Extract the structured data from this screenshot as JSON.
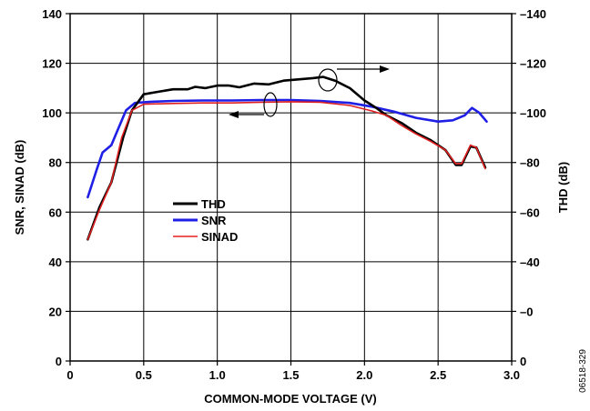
{
  "chart_data": {
    "type": "line",
    "title": "",
    "xlabel": "COMMON-MODE VOLTAGE (V)",
    "ylabel_left": "SNR, SINAD (dB)",
    "ylabel_right": "THD (dB)",
    "xlim": [
      0,
      3.0
    ],
    "ylim_left": [
      0,
      140
    ],
    "ylim_right": [
      0,
      -140
    ],
    "x_ticks": [
      "0",
      "0.5",
      "1.0",
      "1.5",
      "2.0",
      "2.5",
      "3.0"
    ],
    "y_ticks_left": [
      "0",
      "20",
      "40",
      "60",
      "80",
      "100",
      "120",
      "140"
    ],
    "y_ticks_right": [
      "0",
      "–0",
      "–40",
      "–60",
      "–80",
      "–100",
      "–120",
      "–140"
    ],
    "grid": true,
    "legend_position": "middle-left",
    "figure_code": "06518-329",
    "series": [
      {
        "name": "THD",
        "color": "#000000",
        "axis": "right",
        "points": [
          [
            0.12,
            -49
          ],
          [
            0.2,
            -62
          ],
          [
            0.28,
            -72
          ],
          [
            0.36,
            -90
          ],
          [
            0.42,
            -101
          ],
          [
            0.5,
            -107.5
          ],
          [
            0.6,
            -108.5
          ],
          [
            0.7,
            -109.5
          ],
          [
            0.8,
            -109.5
          ],
          [
            0.85,
            -110.5
          ],
          [
            0.92,
            -110
          ],
          [
            1.0,
            -111
          ],
          [
            1.08,
            -111
          ],
          [
            1.15,
            -110.3
          ],
          [
            1.25,
            -111.8
          ],
          [
            1.35,
            -111.5
          ],
          [
            1.45,
            -113
          ],
          [
            1.55,
            -113.5
          ],
          [
            1.65,
            -114
          ],
          [
            1.72,
            -114.5
          ],
          [
            1.8,
            -113
          ],
          [
            1.9,
            -110
          ],
          [
            2.0,
            -105
          ],
          [
            2.08,
            -102
          ],
          [
            2.15,
            -99
          ],
          [
            2.25,
            -96
          ],
          [
            2.35,
            -92
          ],
          [
            2.45,
            -89
          ],
          [
            2.55,
            -85
          ],
          [
            2.62,
            -79
          ],
          [
            2.66,
            -79
          ],
          [
            2.72,
            -86.5
          ],
          [
            2.76,
            -86
          ],
          [
            2.82,
            -78
          ]
        ]
      },
      {
        "name": "SNR",
        "color": "#1f1fe6",
        "axis": "left",
        "points": [
          [
            0.12,
            66
          ],
          [
            0.18,
            77
          ],
          [
            0.22,
            84
          ],
          [
            0.28,
            87
          ],
          [
            0.33,
            94
          ],
          [
            0.38,
            101
          ],
          [
            0.44,
            104
          ],
          [
            0.55,
            104.5
          ],
          [
            0.7,
            104.8
          ],
          [
            0.9,
            105
          ],
          [
            1.1,
            105
          ],
          [
            1.3,
            105.2
          ],
          [
            1.5,
            105.2
          ],
          [
            1.7,
            104.8
          ],
          [
            1.9,
            104
          ],
          [
            2.05,
            102.5
          ],
          [
            2.2,
            100.5
          ],
          [
            2.35,
            98
          ],
          [
            2.5,
            96.5
          ],
          [
            2.6,
            97
          ],
          [
            2.68,
            99
          ],
          [
            2.73,
            102
          ],
          [
            2.78,
            100
          ],
          [
            2.83,
            96.5
          ]
        ]
      },
      {
        "name": "SINAD",
        "color": "#e02020",
        "axis": "left",
        "points": [
          [
            0.12,
            49
          ],
          [
            0.2,
            61
          ],
          [
            0.28,
            72
          ],
          [
            0.35,
            90
          ],
          [
            0.42,
            101
          ],
          [
            0.5,
            103.5
          ],
          [
            0.7,
            103.8
          ],
          [
            0.9,
            104
          ],
          [
            1.1,
            104
          ],
          [
            1.3,
            104.3
          ],
          [
            1.5,
            104.5
          ],
          [
            1.7,
            104.3
          ],
          [
            1.9,
            103
          ],
          [
            2.05,
            100.8
          ],
          [
            2.15,
            99
          ],
          [
            2.25,
            95
          ],
          [
            2.35,
            91.5
          ],
          [
            2.45,
            88.5
          ],
          [
            2.55,
            85
          ],
          [
            2.62,
            79.5
          ],
          [
            2.66,
            79.5
          ],
          [
            2.72,
            87
          ],
          [
            2.76,
            86
          ],
          [
            2.82,
            77.5
          ]
        ]
      }
    ],
    "annotations": [
      {
        "kind": "arrow-right",
        "target": "THD"
      },
      {
        "kind": "arrow-left",
        "target": "SNR, SINAD"
      }
    ]
  }
}
